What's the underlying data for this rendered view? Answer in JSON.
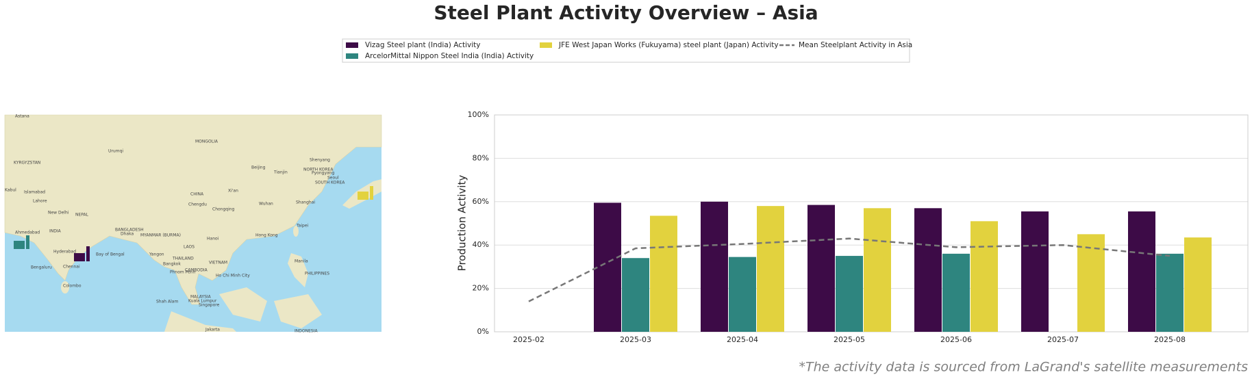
{
  "chart_data": {
    "type": "bar",
    "title": "Steel Plant Activity Overview – Asia",
    "y_label": "Production Activity",
    "footnote": "*The activity data is sourced from LaGrand's satellite measurements",
    "categories": [
      "2025-02",
      "2025-03",
      "2025-04",
      "2025-05",
      "2025-06",
      "2025-07",
      "2025-08"
    ],
    "series": [
      {
        "name": "Vizag Steel plant (India) Activity",
        "color": "#3d0b47",
        "values": [
          null,
          59.5,
          60,
          58.5,
          57,
          55.5,
          55.5
        ]
      },
      {
        "name": "ArcelorMittal Nippon Steel India (India) Activity",
        "color": "#2e857f",
        "values": [
          null,
          34,
          34.5,
          35,
          36,
          null,
          36
        ]
      },
      {
        "name": "JFE West Japan Works (Fukuyama) steel plant (Japan) Activity",
        "color": "#e2d23e",
        "values": [
          null,
          53.5,
          58,
          57,
          51,
          45,
          43.5
        ]
      },
      {
        "name": "Mean Steelplant Activity in Asia",
        "type": "line",
        "color": "#777777",
        "values": [
          14,
          38.5,
          40.5,
          43,
          39,
          40,
          35
        ]
      }
    ],
    "ylim": [
      0,
      100
    ],
    "yticks": [
      {
        "value": 0,
        "label": "0%"
      },
      {
        "value": 20,
        "label": "20%"
      },
      {
        "value": 40,
        "label": "40%"
      },
      {
        "value": 60,
        "label": "60%"
      },
      {
        "value": 80,
        "label": "80%"
      },
      {
        "value": 100,
        "label": "100%"
      }
    ],
    "grid": true,
    "legend": "top",
    "map_labels": [
      "Astana",
      "MONGOLIA",
      "Urumqi",
      "KYRGYZSTAN",
      "CHINA",
      "Beijing",
      "Tianjin",
      "Shenyang",
      "NORTH KOREA",
      "Pyongyang",
      "Seoul",
      "SOUTH KOREA",
      "Kabul",
      "Islamabad",
      "Lahore",
      "New Delhi",
      "NEPAL",
      "INDIA",
      "Ahmedabad",
      "Xi'an",
      "Chengdu",
      "Chongqing",
      "Wuhan",
      "Shanghai",
      "Taipei",
      "Hong Kong",
      "Hanoi",
      "BANGLADESH",
      "Dhaka",
      "MYANMAR (BURMA)",
      "Hyderabad",
      "Chennai",
      "Bengaluru",
      "Bay of Bengal",
      "Yangon",
      "LAOS",
      "THAILAND",
      "Bangkok",
      "VIETNAM",
      "CAMBODIA",
      "Phnom Penh",
      "Ho Chi Minh City",
      "Manila",
      "PHILIPPINES",
      "Colombo",
      "MALAYSIA",
      "Kuala Lumpur",
      "Shah Alam",
      "Singapore",
      "Jakarta",
      "INDONESIA"
    ]
  }
}
